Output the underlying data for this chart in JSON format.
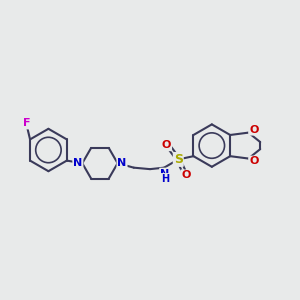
{
  "bg_color": "#e8eaea",
  "bond_color": "#3a3a5a",
  "N_color": "#0000cc",
  "O_color": "#cc0000",
  "F_color": "#cc00cc",
  "S_color": "#aaaa00",
  "line_width": 1.5,
  "fig_w": 3.0,
  "fig_h": 3.0,
  "dpi": 100,
  "xlim": [
    0,
    10
  ],
  "ylim": [
    3.5,
    8.5
  ]
}
